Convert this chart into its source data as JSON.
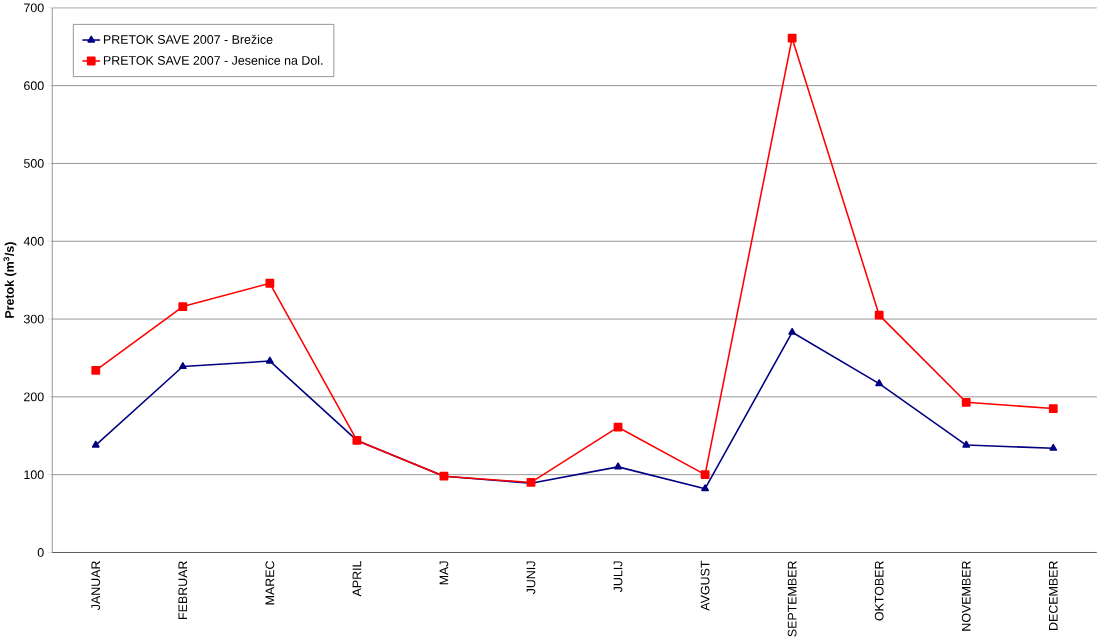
{
  "chart_data": {
    "type": "line",
    "ylabel": "**Pretok (m$^{3}$/s)**",
    "categories": [
      "JANUAR",
      "FEBRUAR",
      "MAREC",
      "APRIL",
      "MAJ",
      "JUNIJ",
      "JULIJ",
      "AVGUST",
      "SEPTEMBER",
      "OKTOBER",
      "NOVEMBER",
      "DECEMBER"
    ],
    "series": [
      {
        "name": "PRETOK SAVE 2007 - Brežice",
        "color": "#000080",
        "marker": "triangle",
        "values": [
          138,
          239,
          246,
          144,
          98,
          89,
          110,
          82,
          283,
          217,
          138,
          134
        ]
      },
      {
        "name": "PRETOK SAVE 2007 - Jesenice na Dol.",
        "color": "#ff0000",
        "marker": "square",
        "values": [
          234,
          316,
          346,
          144,
          98,
          90,
          161,
          100,
          661,
          305,
          193,
          185
        ]
      }
    ],
    "ylim": [
      0,
      700
    ],
    "yticks": [
      0,
      100,
      200,
      300,
      400,
      500,
      600,
      700
    ],
    "grid": "y",
    "legend": "top left",
    "line_style": "solid"
  }
}
